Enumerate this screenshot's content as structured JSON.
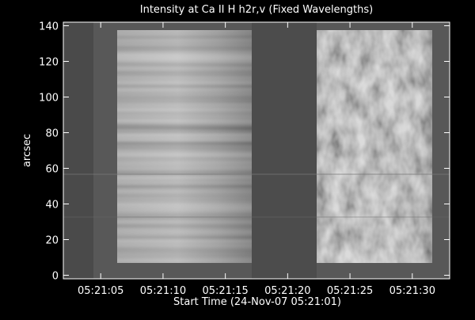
{
  "chart_data": {
    "type": "image",
    "title": "Intensity at Ca II H h2r,v (Fixed Wavelengths)",
    "xlabel": "Start Time (24-Nov-07 05:21:01)",
    "ylabel": "arcsec",
    "xlim": [
      1,
      32
    ],
    "xticks": [
      {
        "value": 4,
        "label": "05:21:05"
      },
      {
        "value": 9,
        "label": "05:21:10"
      },
      {
        "value": 14,
        "label": "05:21:15"
      },
      {
        "value": 19,
        "label": "05:21:20"
      },
      {
        "value": 24,
        "label": "05:21:25"
      },
      {
        "value": 29,
        "label": "05:21:30"
      }
    ],
    "ylim": [
      -2,
      142
    ],
    "yticks": [
      0,
      20,
      40,
      60,
      80,
      100,
      120,
      140
    ]
  }
}
